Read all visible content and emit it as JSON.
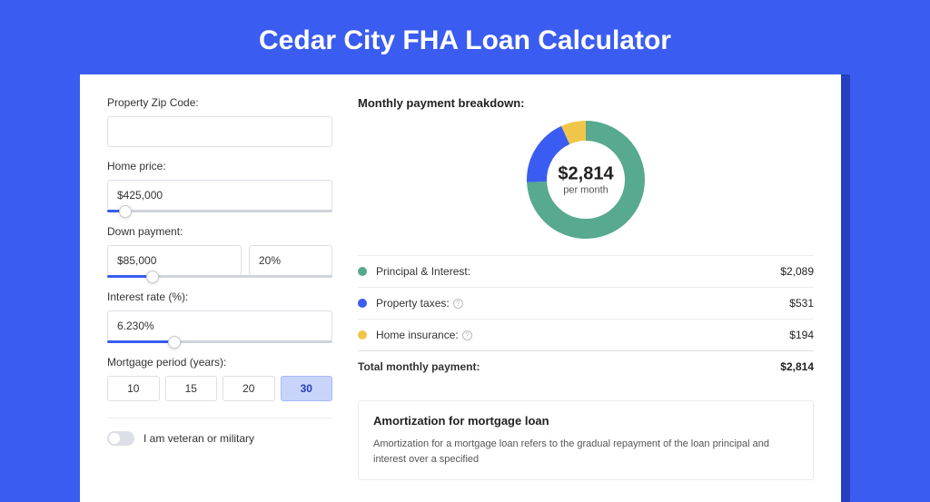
{
  "page": {
    "title": "Cedar City FHA Loan Calculator",
    "background_color": "#3a5cf0",
    "card_shadow_color": "#2440c0"
  },
  "inputs": {
    "zip_label": "Property Zip Code:",
    "zip_value": "",
    "home_price_label": "Home price:",
    "home_price_value": "$425,000",
    "home_price_slider_pct": 8,
    "down_payment_label": "Down payment:",
    "down_payment_value": "$85,000",
    "down_payment_pct_value": "20%",
    "down_payment_slider_pct": 20,
    "interest_label": "Interest rate (%):",
    "interest_value": "6.230%",
    "interest_slider_pct": 30,
    "period_label": "Mortgage period (years):",
    "periods": [
      "10",
      "15",
      "20",
      "30"
    ],
    "period_active_index": 3,
    "veteran_label": "I am veteran or military",
    "veteran_on": false
  },
  "breakdown": {
    "title": "Monthly payment breakdown:",
    "center_amount": "$2,814",
    "center_sub": "per month",
    "donut": {
      "size": 130,
      "thickness": 22,
      "slices": [
        {
          "color": "#57a98f",
          "fraction": 0.742,
          "label": "Principal & Interest:",
          "value": "$2,089"
        },
        {
          "color": "#3a5cf0",
          "fraction": 0.189,
          "label": "Property taxes:",
          "value": "$531",
          "info": true
        },
        {
          "color": "#f0c64a",
          "fraction": 0.069,
          "label": "Home insurance:",
          "value": "$194",
          "info": true
        }
      ]
    },
    "total_label": "Total monthly payment:",
    "total_value": "$2,814"
  },
  "amortization": {
    "title": "Amortization for mortgage loan",
    "text": "Amortization for a mortgage loan refers to the gradual repayment of the loan principal and interest over a specified"
  }
}
